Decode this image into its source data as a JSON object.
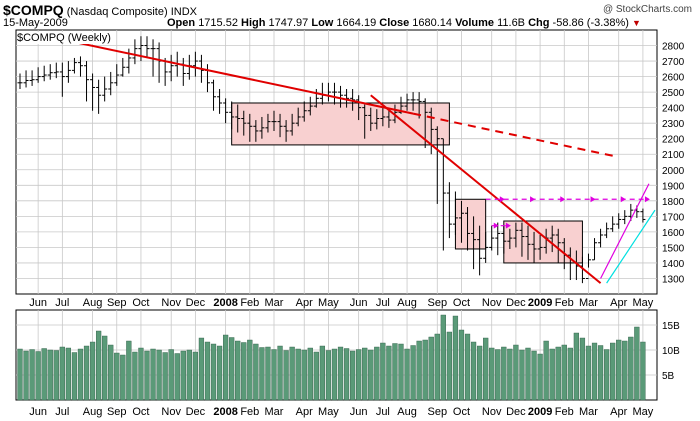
{
  "header": {
    "symbol": "$COMPQ",
    "name": "(Nasdaq Composite)",
    "exchange": "INDX",
    "date": "15-May-2009",
    "open_label": "Open",
    "open": "1715.52",
    "high_label": "High",
    "high": "1747.97",
    "low_label": "Low",
    "low": "1664.19",
    "close_label": "Close",
    "close": "1680.14",
    "volume_label": "Volume",
    "volume": "11.6B",
    "chg_label": "Chg",
    "chg": "-58.86 (-3.38%)",
    "watermark": "@ StockCharts.com",
    "panel_label": "$COMPQ (Weekly)"
  },
  "colors": {
    "bar": "#000000",
    "trend": "#e00000",
    "box_fill": "#f8d0d0",
    "box_stroke": "#000000",
    "target": "#e000e0",
    "channel_upper": "#e000e0",
    "channel_lower": "#00e0e0",
    "volume_fill": "#5a9a78",
    "grid": "#c8c8c8",
    "down_arrow": "#c00000"
  },
  "chart_data": [
    {
      "type": "ohlc",
      "title": "$COMPQ (Weekly)",
      "y_axis_side": "right",
      "ylim": [
        1200,
        2900
      ],
      "yticks": [
        1300,
        1400,
        1500,
        1600,
        1700,
        1800,
        1900,
        2000,
        2100,
        2200,
        2300,
        2400,
        2500,
        2600,
        2700,
        2800
      ],
      "grid": true,
      "x_labels": [
        "Jun",
        "Jul",
        "Aug",
        "Sep",
        "Oct",
        "Nov",
        "Dec",
        "2008",
        "Feb",
        "Mar",
        "Apr",
        "May",
        "Jun",
        "Jul",
        "Aug",
        "Sep",
        "Oct",
        "Nov",
        "Dec",
        "2009",
        "Feb",
        "Mar",
        "Apr",
        "May"
      ],
      "x_label_bold": [
        "2008",
        "2009"
      ],
      "x_label_week_index": [
        3,
        7,
        12,
        16,
        20,
        25,
        29,
        34,
        38,
        42,
        47,
        51,
        56,
        60,
        64,
        69,
        73,
        78,
        82,
        86,
        90,
        94,
        99,
        103
      ],
      "weeks": 106,
      "series": [
        {
          "close": [
            2560,
            2575,
            2580,
            2600,
            2610,
            2625,
            2630,
            2600,
            2640,
            2690,
            2670,
            2580,
            2530,
            2480,
            2520,
            2560,
            2610,
            2660,
            2720,
            2780,
            2800,
            2780,
            2780,
            2700,
            2630,
            2670,
            2680,
            2620,
            2670,
            2700,
            2640,
            2560,
            2470,
            2430,
            2370,
            2340,
            2330,
            2300,
            2280,
            2250,
            2270,
            2310,
            2310,
            2280,
            2250,
            2300,
            2340,
            2380,
            2410,
            2460,
            2480,
            2500,
            2500,
            2480,
            2460,
            2450,
            2400,
            2350,
            2300,
            2330,
            2340,
            2320,
            2370,
            2410,
            2450,
            2450,
            2440,
            2370,
            2260,
            2200,
            1850,
            1650,
            1690,
            1720,
            1590,
            1550,
            1430,
            1500,
            1560,
            1590,
            1540,
            1560,
            1610,
            1570,
            1520,
            1490,
            1500,
            1560,
            1580,
            1530,
            1450,
            1400,
            1380,
            1300,
            1420,
            1530,
            1580,
            1620,
            1650,
            1680,
            1700,
            1740,
            1730,
            1680
          ],
          "high": [
            2620,
            2640,
            2640,
            2660,
            2670,
            2680,
            2690,
            2690,
            2700,
            2720,
            2730,
            2700,
            2620,
            2580,
            2600,
            2630,
            2680,
            2720,
            2780,
            2840,
            2860,
            2860,
            2840,
            2820,
            2720,
            2740,
            2760,
            2720,
            2740,
            2760,
            2740,
            2680,
            2580,
            2520,
            2460,
            2440,
            2420,
            2380,
            2360,
            2320,
            2340,
            2360,
            2380,
            2360,
            2320,
            2360,
            2400,
            2440,
            2470,
            2520,
            2560,
            2560,
            2560,
            2540,
            2520,
            2520,
            2480,
            2420,
            2400,
            2390,
            2400,
            2390,
            2420,
            2470,
            2490,
            2500,
            2500,
            2460,
            2400,
            2280,
            2200,
            1920,
            1860,
            1800,
            1760,
            1700,
            1640,
            1600,
            1640,
            1660,
            1640,
            1620,
            1660,
            1660,
            1640,
            1600,
            1580,
            1620,
            1640,
            1620,
            1560,
            1500,
            1480,
            1440,
            1460,
            1560,
            1620,
            1660,
            1700,
            1720,
            1740,
            1780,
            1770,
            1750
          ],
          "low": [
            2520,
            2530,
            2540,
            2560,
            2570,
            2580,
            2590,
            2470,
            2560,
            2620,
            2600,
            2440,
            2380,
            2360,
            2440,
            2480,
            2540,
            2600,
            2620,
            2680,
            2700,
            2720,
            2600,
            2560,
            2540,
            2570,
            2600,
            2540,
            2580,
            2600,
            2560,
            2500,
            2380,
            2360,
            2300,
            2260,
            2240,
            2220,
            2180,
            2180,
            2200,
            2240,
            2250,
            2210,
            2180,
            2220,
            2280,
            2310,
            2350,
            2400,
            2420,
            2440,
            2420,
            2400,
            2400,
            2380,
            2320,
            2200,
            2250,
            2260,
            2280,
            2270,
            2300,
            2360,
            2380,
            2380,
            2330,
            2140,
            2100,
            1780,
            1480,
            1560,
            1580,
            1530,
            1480,
            1360,
            1320,
            1400,
            1480,
            1450,
            1460,
            1490,
            1500,
            1440,
            1420,
            1400,
            1420,
            1460,
            1470,
            1400,
            1360,
            1290,
            1290,
            1270,
            1370,
            1420,
            1500,
            1560,
            1600,
            1620,
            1650,
            1670,
            1690,
            1660
          ]
        }
      ],
      "annotations": {
        "downtrend_line": [
          [
            2,
            2880
          ],
          [
            98,
            2090
          ]
        ],
        "downtrend_solid_until_week": 65,
        "steep_trend_line": [
          [
            58,
            2480
          ],
          [
            96,
            1270
          ]
        ],
        "boxes": [
          {
            "from_week": 35,
            "to_week": 71,
            "top": 2430,
            "bottom": 2160
          },
          {
            "from_week": 72,
            "to_week": 77,
            "top": 1810,
            "bottom": 1490
          },
          {
            "from_week": 80,
            "to_week": 93,
            "top": 1670,
            "bottom": 1400
          }
        ],
        "target_lines": [
          {
            "from_week": 77,
            "to_week": 104,
            "y": 1810,
            "arrows_at_weeks": [
              80,
              85,
              90,
              95,
              100,
              104
            ]
          },
          {
            "from_week": 78,
            "to_week": 81,
            "y": 1640,
            "arrows_at_weeks": [
              79,
              81
            ]
          }
        ],
        "channel_upper": [
          [
            96,
            1300
          ],
          [
            104,
            1910
          ]
        ],
        "channel_lower": [
          [
            97,
            1270
          ],
          [
            105,
            1740
          ]
        ]
      }
    },
    {
      "type": "bar",
      "title": "Volume",
      "y_axis_side": "right",
      "ylim": [
        0,
        18
      ],
      "yticks": [
        5,
        10,
        15
      ],
      "ytick_labels": [
        "5B",
        "10B",
        "15B"
      ],
      "grid": true,
      "values": [
        10.2,
        9.8,
        10.1,
        9.7,
        10.3,
        10.0,
        9.9,
        10.6,
        10.4,
        9.5,
        10.2,
        10.8,
        11.6,
        13.8,
        12.8,
        11.0,
        9.4,
        9.0,
        11.8,
        9.6,
        10.4,
        9.8,
        10.2,
        10.0,
        9.5,
        10.1,
        9.3,
        9.8,
        10.0,
        9.6,
        12.4,
        11.6,
        11.2,
        10.8,
        13.0,
        12.5,
        11.8,
        11.5,
        12.0,
        11.2,
        10.5,
        10.6,
        10.1,
        10.8,
        9.9,
        10.6,
        10.2,
        10.0,
        10.4,
        9.6,
        10.8,
        9.9,
        10.2,
        10.6,
        10.3,
        9.8,
        10.1,
        10.4,
        10.0,
        10.6,
        11.4,
        10.8,
        11.3,
        11.2,
        10.2,
        10.9,
        11.8,
        12.0,
        12.6,
        13.2,
        17.0,
        13.6,
        16.8,
        14.0,
        13.2,
        11.6,
        10.8,
        12.4,
        10.4,
        10.1,
        10.6,
        10.2,
        11.0,
        10.0,
        10.4,
        9.8,
        9.2,
        11.8,
        10.2,
        10.6,
        11.0,
        10.4,
        13.4,
        12.4,
        10.8,
        11.4,
        10.9,
        10.1,
        11.4,
        12.0,
        11.8,
        12.6,
        14.6,
        11.6
      ]
    }
  ]
}
